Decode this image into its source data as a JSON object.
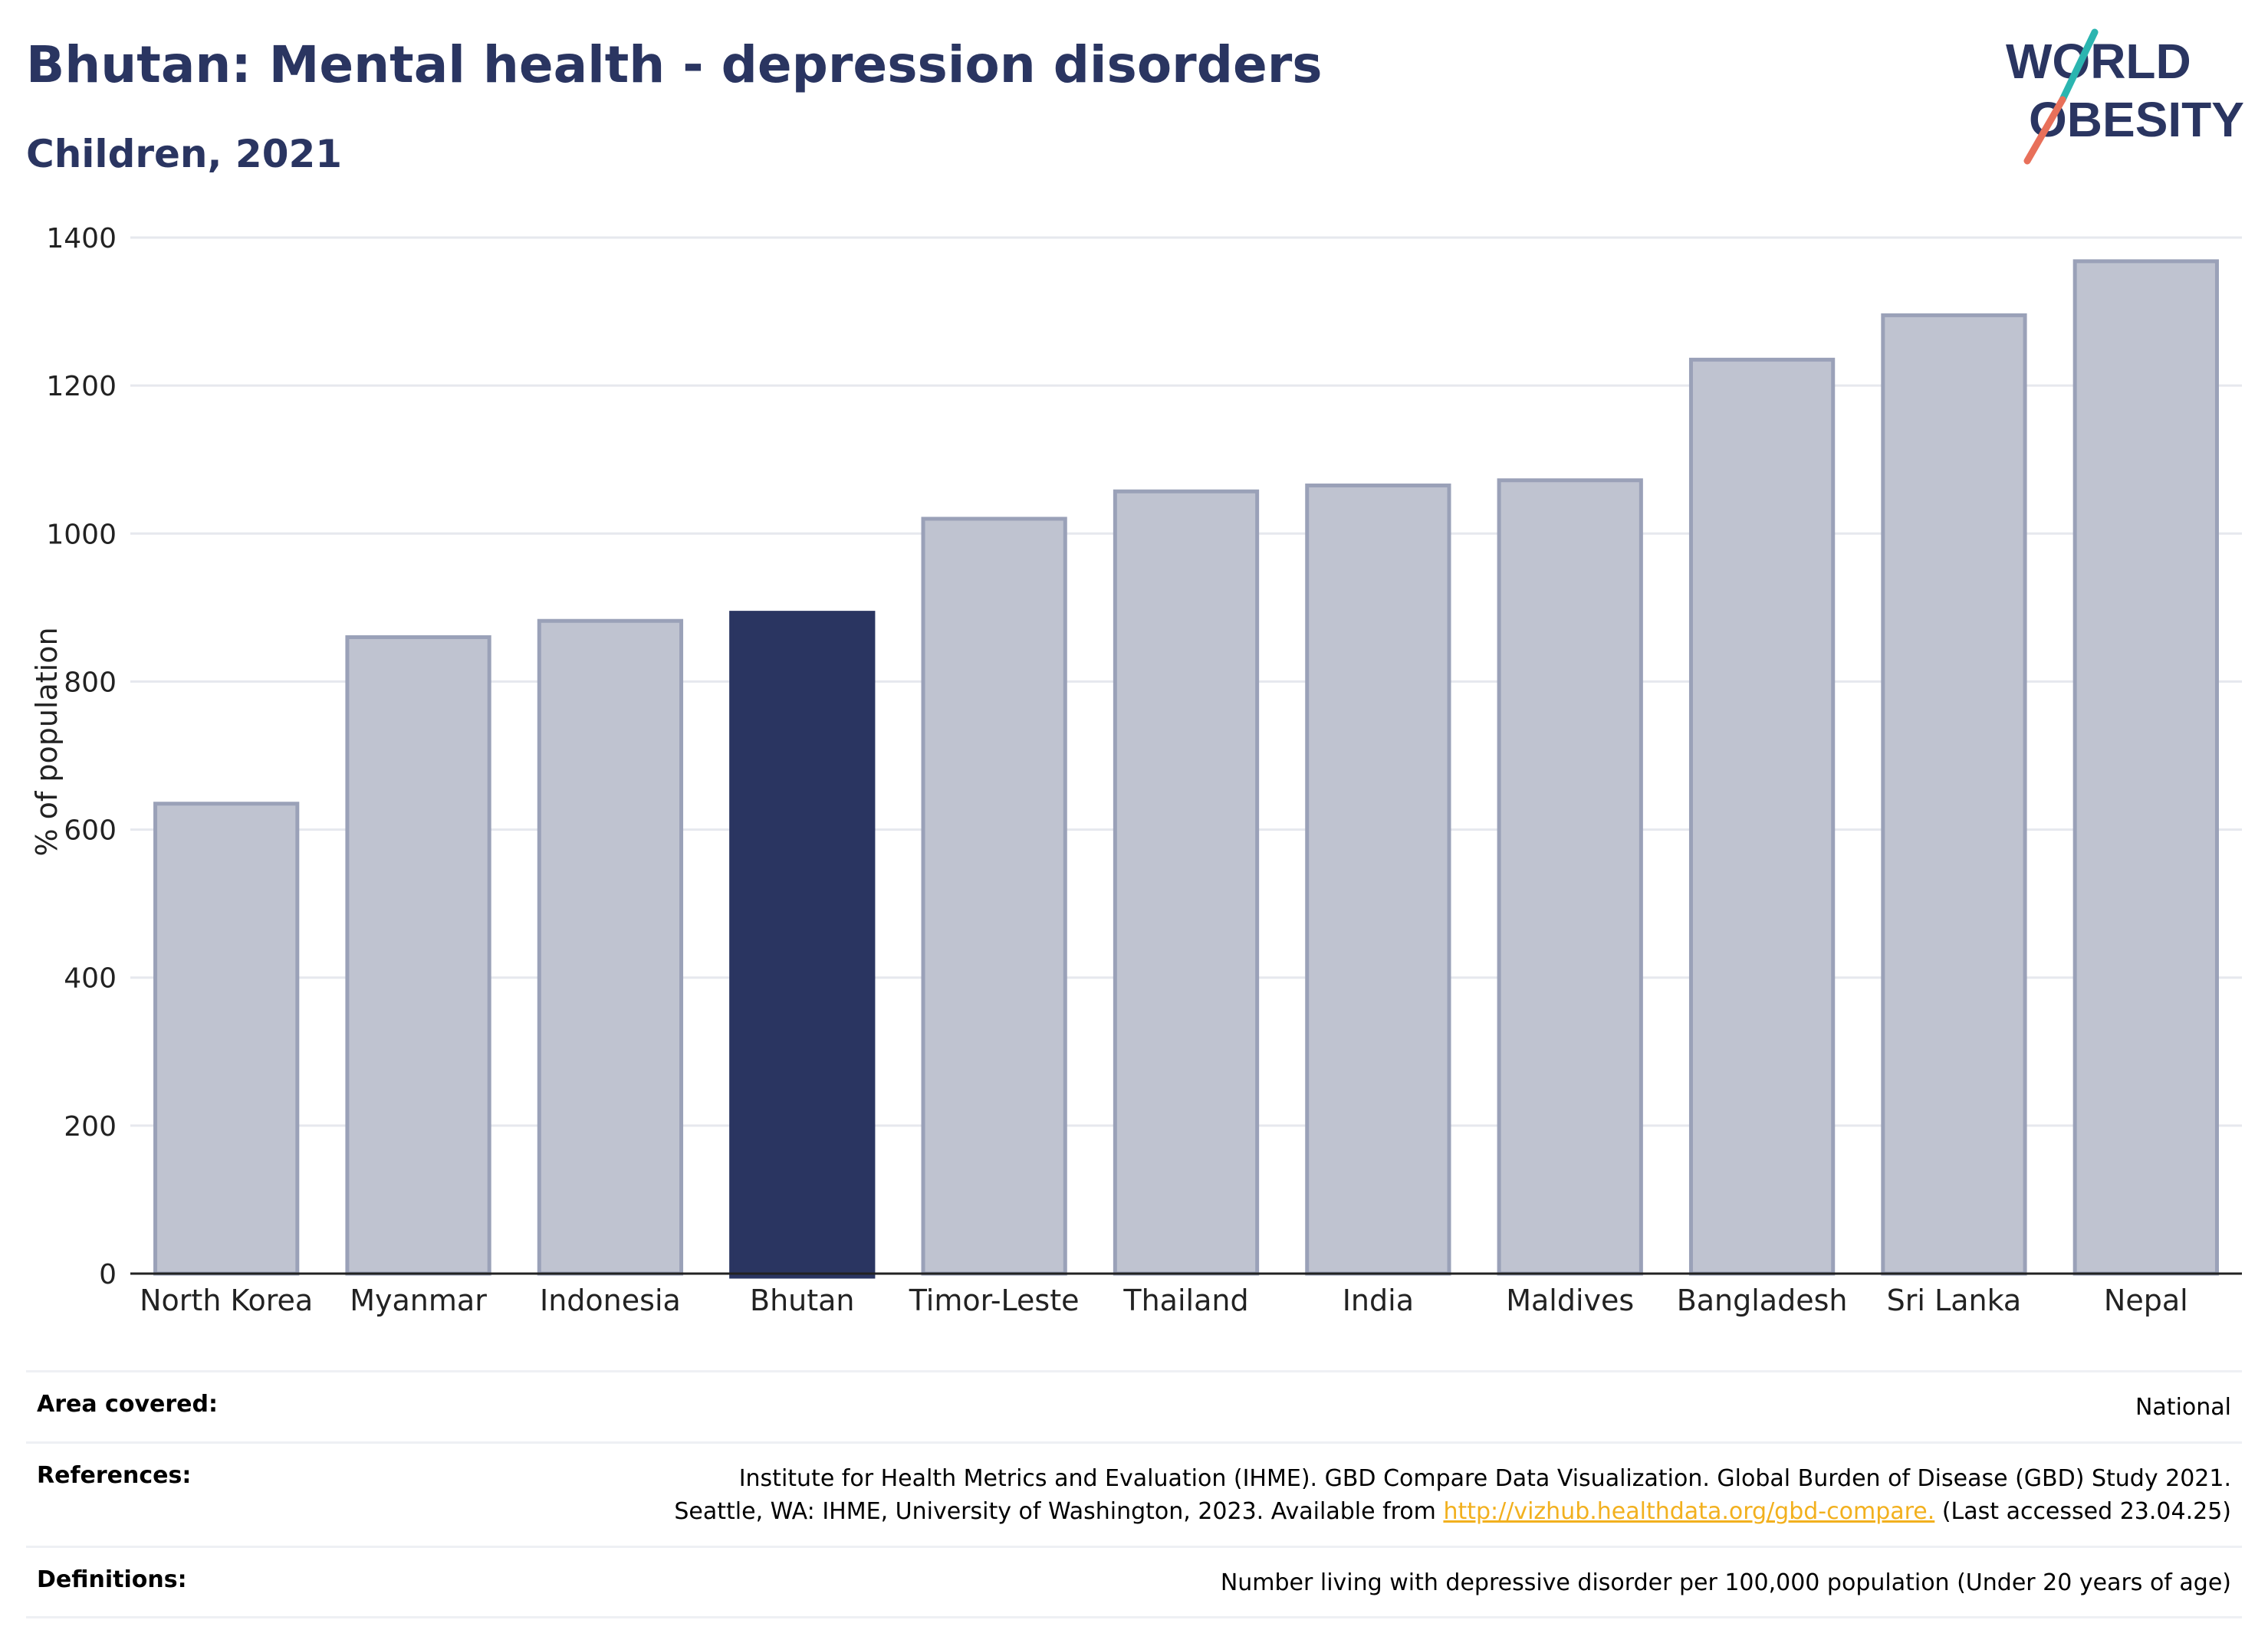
{
  "header": {
    "title": "Bhutan: Mental health - depression disorders",
    "subtitle": "Children, 2021"
  },
  "logo": {
    "line1": "WORLD",
    "line2": "OBESITY"
  },
  "colors": {
    "highlight": "#2a3561",
    "bar": "#bfc3d0",
    "bar_stroke": "#9aa1b8",
    "title": "#2a3561",
    "link": "#f2b01e"
  },
  "chart_data": {
    "type": "bar",
    "categories": [
      "North Korea",
      "Myanmar",
      "Indonesia",
      "Bhutan",
      "Timor-Leste",
      "Thailand",
      "India",
      "Maldives",
      "Bangladesh",
      "Sri Lanka",
      "Nepal"
    ],
    "values": [
      635,
      860,
      882,
      893,
      1020,
      1057,
      1065,
      1072,
      1235,
      1295,
      1368
    ],
    "highlight": "Bhutan",
    "ylabel": "% of population",
    "ylim": [
      0,
      1400
    ],
    "yticks": [
      0,
      200,
      400,
      600,
      800,
      1000,
      1200,
      1400
    ],
    "grid": true,
    "legend": "none"
  },
  "footer": {
    "area_label": "Area covered:",
    "area_value": "National",
    "references_label": "References:",
    "references_line1": "Institute for Health Metrics and Evaluation (IHME). GBD Compare Data Visualization. Global Burden of Disease (GBD) Study 2021.",
    "references_line2_pre": "Seattle, WA: IHME, University of Washington, 2023. Available from ",
    "references_link": "http://vizhub.healthdata.org/gbd-compare.",
    "references_line2_post": " (Last accessed 23.04.25)",
    "definitions_label": "Definitions:",
    "definitions_value": "Number living with depressive disorder per 100,000 population (Under 20 years of age)"
  }
}
